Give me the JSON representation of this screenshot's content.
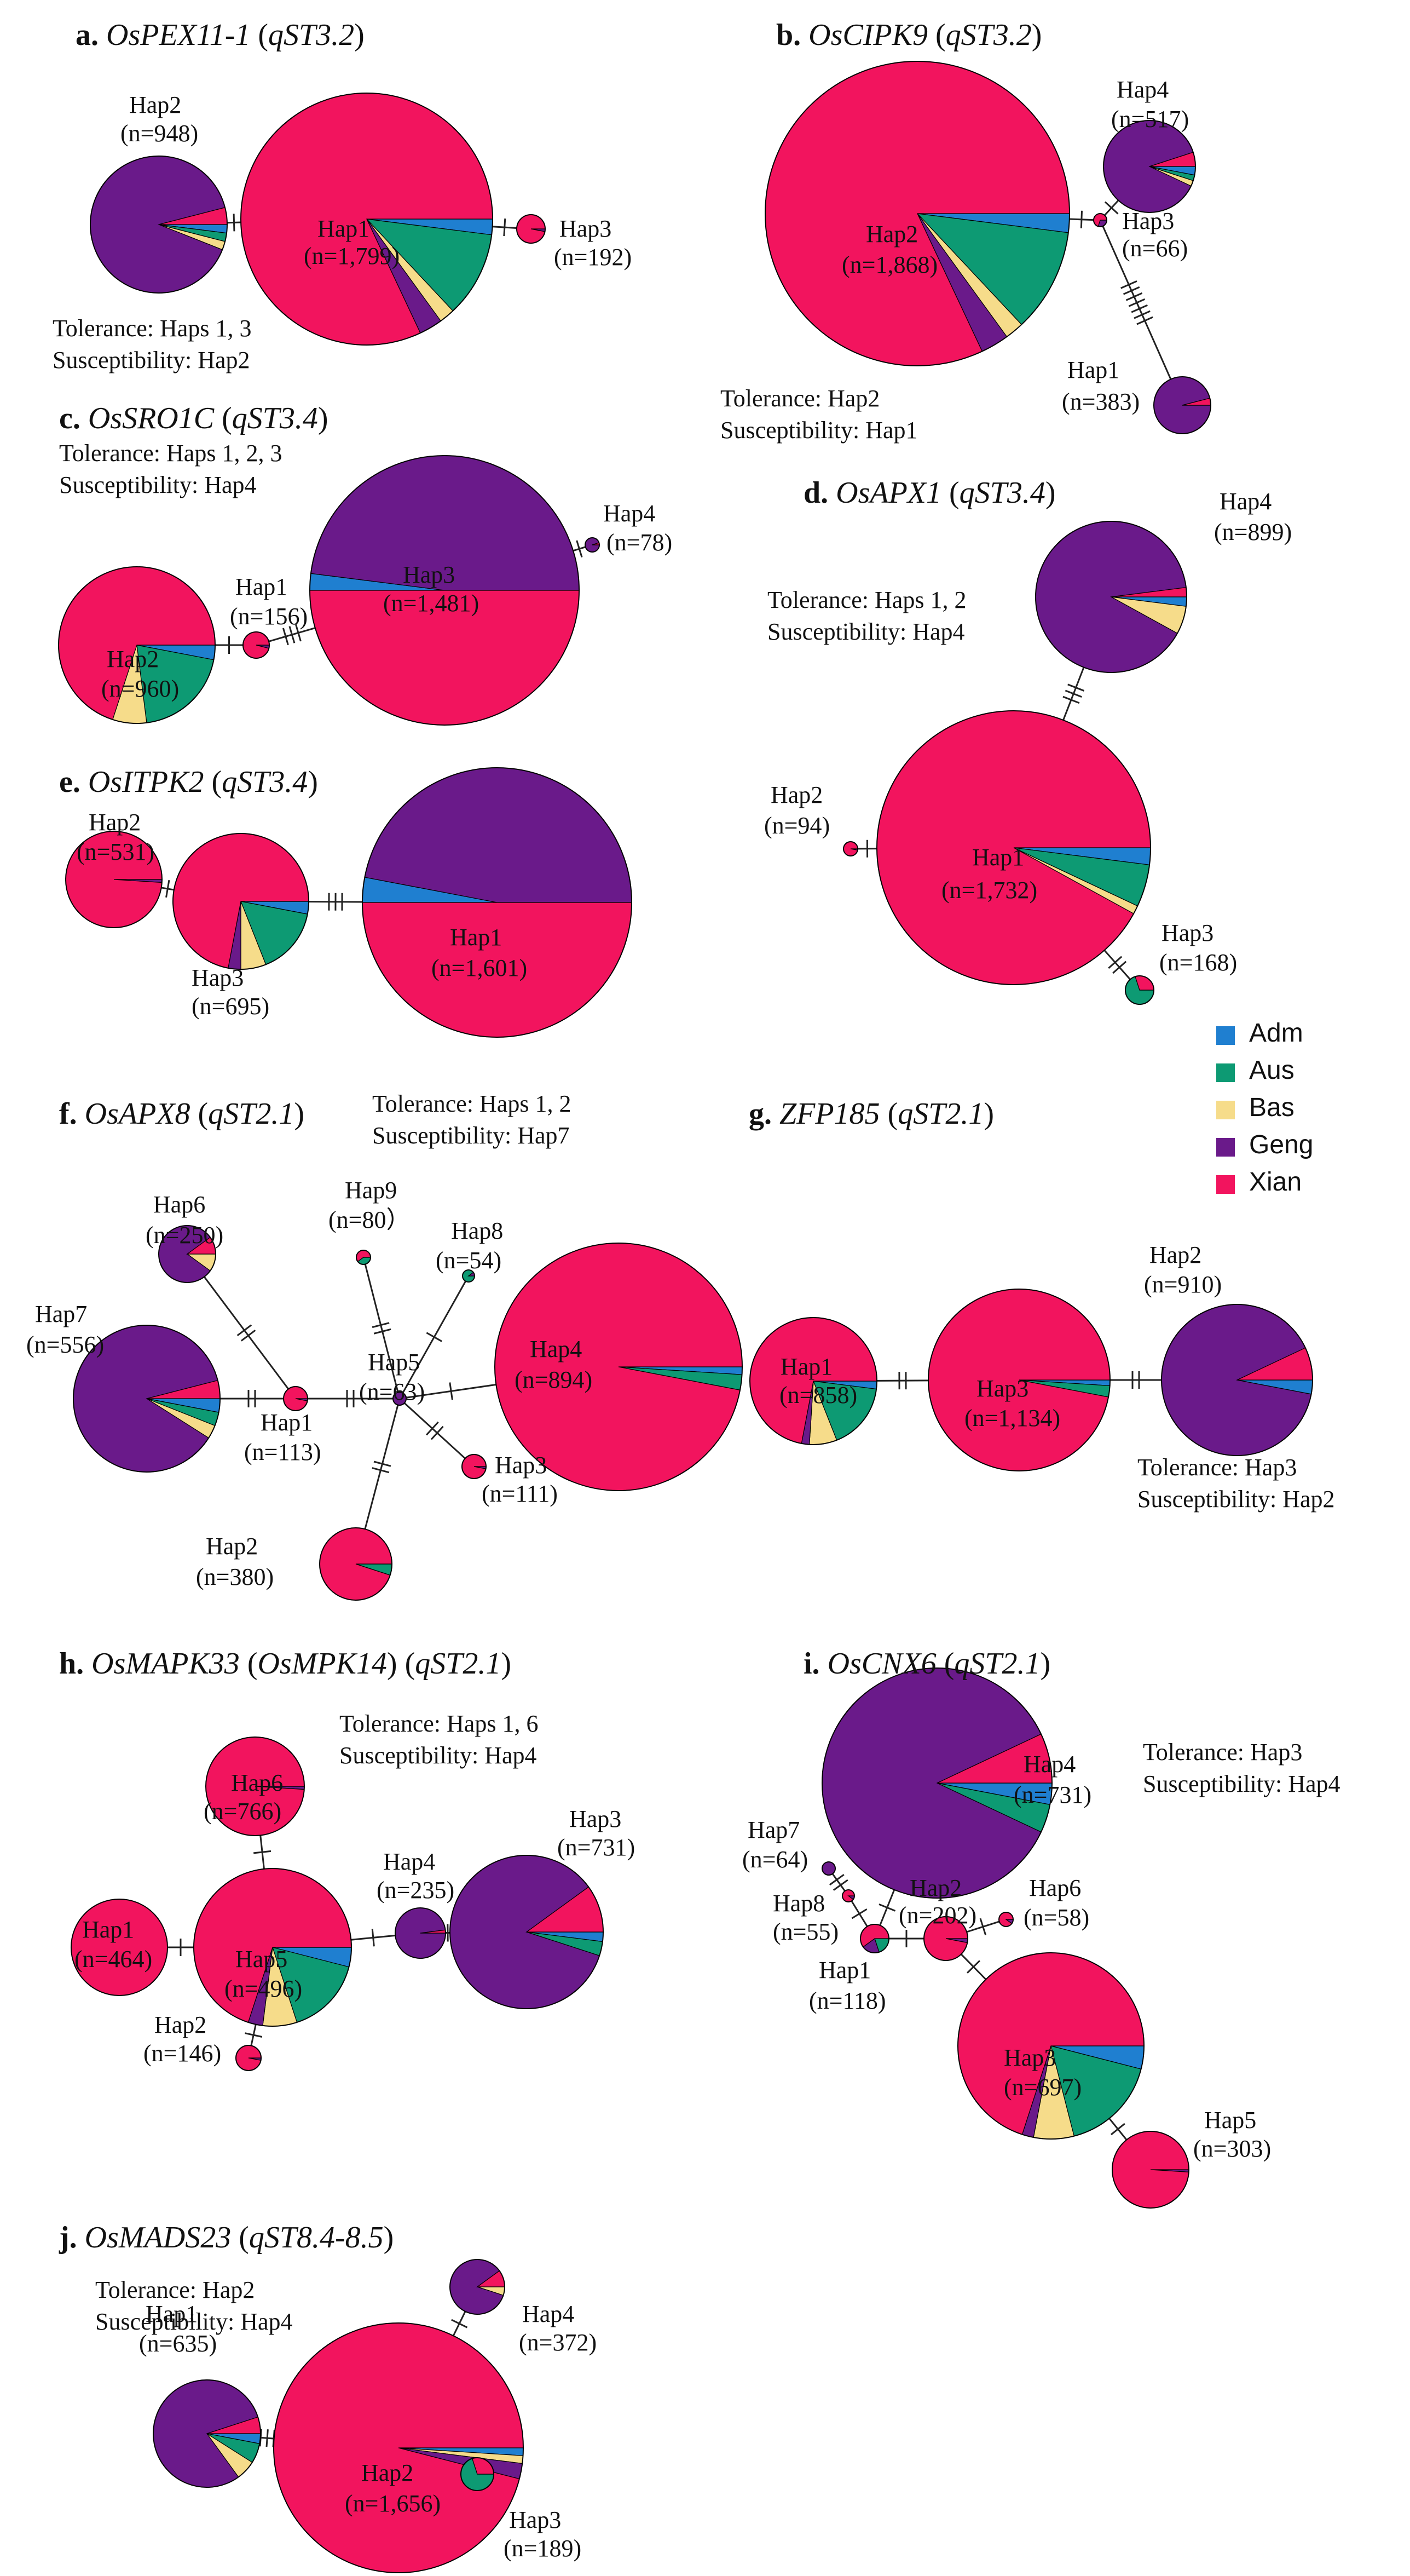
{
  "colors": {
    "Adm": "#1f7fd0",
    "Aus": "#0d9a73",
    "Bas": "#f6dc8a",
    "Geng": "#6a1a8a",
    "Xian": "#f2145e"
  },
  "legend": [
    {
      "name": "Adm"
    },
    {
      "name": "Aus"
    },
    {
      "name": "Bas"
    },
    {
      "name": "Geng"
    },
    {
      "name": "Xian"
    }
  ],
  "panels": [
    {
      "id": "a",
      "letter": "a.",
      "gene": "OsPEX11-1",
      "qtl": "qST3.2",
      "tolerance": "Tolerance: Haps 1, 3",
      "susceptibility": "Susceptibility: Hap2",
      "haps": [
        {
          "name": "Hap1",
          "n": "(n=1,799)",
          "comp": {
            "Xian": 0.82,
            "Adm": 0.02,
            "Aus": 0.11,
            "Bas": 0.02,
            "Geng": 0.03
          }
        },
        {
          "name": "Hap2",
          "n": "(n=948)",
          "comp": {
            "Geng": 0.9,
            "Xian": 0.04,
            "Adm": 0.02,
            "Aus": 0.02,
            "Bas": 0.02
          }
        },
        {
          "name": "Hap3",
          "n": "(n=192)",
          "comp": {
            "Xian": 0.97,
            "Geng": 0.03
          }
        }
      ]
    },
    {
      "id": "b",
      "letter": "b.",
      "gene": "OsCIPK9",
      "qtl": "qST3.2",
      "tolerance": "Tolerance: Hap2",
      "susceptibility": "Susceptibility: Hap1",
      "haps": [
        {
          "name": "Hap2",
          "n": "(n=1,868)",
          "comp": {
            "Xian": 0.82,
            "Adm": 0.02,
            "Aus": 0.11,
            "Bas": 0.02,
            "Geng": 0.03
          }
        },
        {
          "name": "Hap4",
          "n": "(n=517)",
          "comp": {
            "Geng": 0.88,
            "Xian": 0.05,
            "Adm": 0.03,
            "Aus": 0.02,
            "Bas": 0.02
          }
        },
        {
          "name": "Hap3",
          "n": "(n=66)",
          "comp": {
            "Xian": 0.7,
            "Geng": 0.3
          }
        },
        {
          "name": "Hap1",
          "n": "(n=383)",
          "comp": {
            "Geng": 0.96,
            "Xian": 0.04
          }
        }
      ]
    },
    {
      "id": "c",
      "letter": "c.",
      "gene": "OsSRO1C",
      "qtl": "qST3.4",
      "tolerance": "Tolerance: Haps 1, 2, 3",
      "susceptibility": "Susceptibility: Hap4",
      "haps": [
        {
          "name": "Hap3",
          "n": "(n=1,481)",
          "comp": {
            "Xian": 0.5,
            "Adm": 0.02,
            "Geng": 0.48
          }
        },
        {
          "name": "Hap2",
          "n": "(n=960)",
          "comp": {
            "Xian": 0.7,
            "Adm": 0.03,
            "Aus": 0.2,
            "Bas": 0.07
          }
        },
        {
          "name": "Hap1",
          "n": "(n=156)",
          "comp": {
            "Xian": 0.96,
            "Geng": 0.04
          }
        },
        {
          "name": "Hap4",
          "n": "(n=78)",
          "comp": {
            "Geng": 0.95,
            "Xian": 0.05
          }
        }
      ]
    },
    {
      "id": "d",
      "letter": "d.",
      "gene": "OsAPX1",
      "qtl": "qST3.4",
      "tolerance": "Tolerance:  Haps 1, 2",
      "susceptibility": "Susceptibility: Hap4",
      "haps": [
        {
          "name": "Hap4",
          "n": "(n=899)",
          "comp": {
            "Geng": 0.9,
            "Xian": 0.02,
            "Adm": 0.02,
            "Bas": 0.06
          }
        },
        {
          "name": "Hap1",
          "n": "(n=1,732)",
          "comp": {
            "Xian": 0.92,
            "Adm": 0.02,
            "Aus": 0.05,
            "Bas": 0.01
          }
        },
        {
          "name": "Hap2",
          "n": "(n=94)",
          "comp": {
            "Xian": 0.97,
            "Geng": 0.03
          }
        },
        {
          "name": "Hap3",
          "n": "(n=168)",
          "comp": {
            "Aus": 0.7,
            "Xian": 0.3
          }
        }
      ]
    },
    {
      "id": "e",
      "letter": "e.",
      "gene": "OsITPK2",
      "qtl": "qST3.4",
      "tolerance": "",
      "susceptibility": "",
      "haps": [
        {
          "name": "Hap2",
          "n": "(n=531)",
          "comp": {
            "Xian": 0.99,
            "Geng": 0.01
          }
        },
        {
          "name": "Hap3",
          "n": "(n=695)",
          "comp": {
            "Xian": 0.72,
            "Adm": 0.03,
            "Aus": 0.16,
            "Bas": 0.06,
            "Geng": 0.03
          }
        },
        {
          "name": "Hap1",
          "n": "(n=1,601)",
          "comp": {
            "Xian": 0.5,
            "Adm": 0.03,
            "Geng": 0.47
          }
        }
      ]
    },
    {
      "id": "f",
      "letter": "f.",
      "gene": "OsAPX8",
      "qtl": "qST2.1",
      "tolerance": "Tolerance:  Haps 1, 2",
      "susceptibility": "Susceptibility: Hap7",
      "haps": [
        {
          "name": "Hap4",
          "n": "(n=894)",
          "comp": {
            "Xian": 0.97,
            "Adm": 0.01,
            "Aus": 0.02
          }
        },
        {
          "name": "Hap7",
          "n": "(n=556)",
          "comp": {
            "Geng": 0.87,
            "Xian": 0.04,
            "Adm": 0.03,
            "Aus": 0.03,
            "Bas": 0.03
          }
        },
        {
          "name": "Hap6",
          "n": "(n=250)",
          "comp": {
            "Geng": 0.8,
            "Xian": 0.1,
            "Bas": 0.1
          }
        },
        {
          "name": "Hap1",
          "n": "(n=113)",
          "comp": {
            "Xian": 0.97,
            "Geng": 0.03
          }
        },
        {
          "name": "Hap5",
          "n": "(n=63)",
          "comp": {
            "Geng": 1.0
          }
        },
        {
          "name": "Hap9",
          "n": "(n=80）",
          "comp": {
            "Xian": 0.6,
            "Aus": 0.4
          }
        },
        {
          "name": "Hap8",
          "n": "(n=54)",
          "comp": {
            "Aus": 0.9,
            "Geng": 0.1
          }
        },
        {
          "name": "Hap3",
          "n": "(n=111)",
          "comp": {
            "Xian": 0.97,
            "Geng": 0.03
          }
        },
        {
          "name": "Hap2",
          "n": "(n=380)",
          "comp": {
            "Xian": 0.95,
            "Aus": 0.05
          }
        }
      ]
    },
    {
      "id": "g",
      "letter": "g.",
      "gene": "ZFP185",
      "qtl": "qST2.1",
      "tolerance": "Tolerance:  Hap3",
      "susceptibility": "Susceptibility: Hap2",
      "haps": [
        {
          "name": "Hap1",
          "n": "(n=858)",
          "comp": {
            "Xian": 0.72,
            "Adm": 0.02,
            "Aus": 0.17,
            "Bas": 0.07,
            "Geng": 0.02
          }
        },
        {
          "name": "Hap3",
          "n": "(n=1,134)",
          "comp": {
            "Xian": 0.97,
            "Adm": 0.01,
            "Aus": 0.02
          }
        },
        {
          "name": "Hap2",
          "n": "(n=910)",
          "comp": {
            "Geng": 0.9,
            "Xian": 0.07,
            "Adm": 0.03
          }
        }
      ]
    },
    {
      "id": "h",
      "letter": "h.",
      "gene": "OsMAPK33",
      "gene_alt": "OsMPK14",
      "qtl": "qST2.1",
      "tolerance": "Tolerance:   Haps 1, 6",
      "susceptibility": "Susceptibility: Hap4",
      "haps": [
        {
          "name": "Hap6",
          "n": "(n=766)",
          "comp": {
            "Xian": 0.99,
            "Geng": 0.01
          }
        },
        {
          "name": "Hap1",
          "n": "(n=464)",
          "comp": {
            "Xian": 1.0
          }
        },
        {
          "name": "Hap5",
          "n": "(n=496)",
          "comp": {
            "Xian": 0.7,
            "Adm": 0.04,
            "Aus": 0.16,
            "Bas": 0.07,
            "Geng": 0.03
          }
        },
        {
          "name": "Hap2",
          "n": "(n=146)",
          "comp": {
            "Xian": 0.97,
            "Geng": 0.03
          }
        },
        {
          "name": "Hap4",
          "n": "(n=235)",
          "comp": {
            "Geng": 0.98,
            "Xian": 0.02
          }
        },
        {
          "name": "Hap3",
          "n": "(n=731)",
          "comp": {
            "Geng": 0.85,
            "Xian": 0.1,
            "Aus": 0.03,
            "Adm": 0.02
          }
        }
      ]
    },
    {
      "id": "i",
      "letter": "i.",
      "gene": "OsCNX6",
      "qtl": "qST2.1",
      "tolerance": "Tolerance: Hap3",
      "susceptibility": "Susceptibility: Hap4",
      "haps": [
        {
          "name": "Hap4",
          "n": "(n=731)",
          "comp": {
            "Geng": 0.86,
            "Xian": 0.07,
            "Aus": 0.04,
            "Adm": 0.03
          }
        },
        {
          "name": "Hap7",
          "n": "(n=64)",
          "comp": {
            "Geng": 1.0
          }
        },
        {
          "name": "Hap8",
          "n": "(n=55)",
          "comp": {
            "Xian": 0.9,
            "Geng": 0.1
          }
        },
        {
          "name": "Hap1",
          "n": "(n=118)",
          "comp": {
            "Xian": 0.6,
            "Aus": 0.2,
            "Geng": 0.2
          }
        },
        {
          "name": "Hap2",
          "n": "(n=202)",
          "comp": {
            "Xian": 0.97,
            "Geng": 0.03
          }
        },
        {
          "name": "Hap6",
          "n": "(n=58)",
          "comp": {
            "Xian": 0.9,
            "Geng": 0.1
          }
        },
        {
          "name": "Hap3",
          "n": "(n=697)",
          "comp": {
            "Xian": 0.7,
            "Adm": 0.04,
            "Aus": 0.17,
            "Bas": 0.07,
            "Geng": 0.02
          }
        },
        {
          "name": "Hap5",
          "n": "(n=303)",
          "comp": {
            "Xian": 0.99,
            "Geng": 0.01
          }
        }
      ]
    },
    {
      "id": "j",
      "letter": "j.",
      "gene": "OsMADS23",
      "qtl": "qST8.4-8.5",
      "tolerance": "Tolerance:    Hap2",
      "susceptibility": "Susceptibility: Hap4",
      "haps": [
        {
          "name": "Hap1",
          "n": "(n=635)",
          "comp": {
            "Geng": 0.8,
            "Xian": 0.05,
            "Adm": 0.03,
            "Aus": 0.06,
            "Bas": 0.06
          }
        },
        {
          "name": "Hap2",
          "n": "(n=1,656)",
          "comp": {
            "Xian": 0.96,
            "Adm": 0.01,
            "Bas": 0.01,
            "Geng": 0.02
          }
        },
        {
          "name": "Hap4",
          "n": "(n=372)",
          "comp": {
            "Geng": 0.85,
            "Xian": 0.1,
            "Bas": 0.05
          }
        },
        {
          "name": "Hap3",
          "n": "(n=189)",
          "comp": {
            "Aus": 0.7,
            "Xian": 0.3
          }
        }
      ]
    }
  ]
}
